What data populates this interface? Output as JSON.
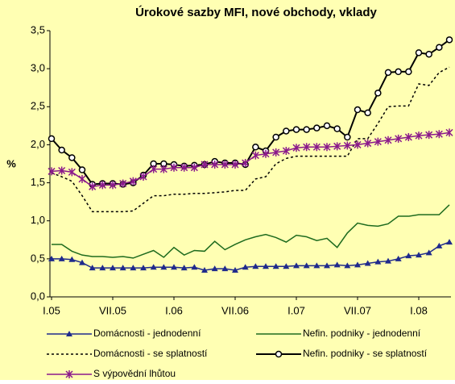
{
  "chart_data": {
    "type": "line",
    "title": "Úrokové sazby MFI, nové obchody, vklady",
    "y_label": "%",
    "categories": [
      "I.05",
      null,
      null,
      null,
      null,
      null,
      "VII.05",
      null,
      null,
      null,
      null,
      null,
      "I.06",
      null,
      null,
      null,
      null,
      null,
      "VII.06",
      null,
      null,
      null,
      null,
      null,
      "I.07",
      null,
      null,
      null,
      null,
      null,
      "VII.07",
      null,
      null,
      null,
      null,
      null,
      "I.08",
      null,
      null,
      null
    ],
    "ylim": [
      0,
      3.5
    ],
    "yticks": [
      {
        "value": 0,
        "label": "0,0"
      },
      {
        "value": 0.5,
        "label": "0,5"
      },
      {
        "value": 1,
        "label": "1,0"
      },
      {
        "value": 1.5,
        "label": "1,5"
      },
      {
        "value": 2,
        "label": "2,0"
      },
      {
        "value": 2.5,
        "label": "2,5"
      },
      {
        "value": 3,
        "label": "3,0"
      },
      {
        "value": 3.5,
        "label": "3,5"
      }
    ],
    "grid": false,
    "background": "#ffffb3",
    "series": [
      {
        "name": "Domácnosti - jednodenní",
        "color": "#1f2a8c",
        "marker": "triangle",
        "dash": "none",
        "values": [
          0.5,
          0.5,
          0.49,
          0.45,
          0.38,
          0.38,
          0.38,
          0.38,
          0.38,
          0.38,
          0.39,
          0.39,
          0.39,
          0.38,
          0.39,
          0.35,
          0.37,
          0.37,
          0.35,
          0.39,
          0.4,
          0.4,
          0.4,
          0.4,
          0.41,
          0.41,
          0.41,
          0.41,
          0.42,
          0.41,
          0.42,
          0.44,
          0.46,
          0.47,
          0.5,
          0.54,
          0.55,
          0.58,
          0.67,
          0.72
        ]
      },
      {
        "name": "Nefin. podniky - jednodenní",
        "color": "#1e6b1e",
        "marker": "none",
        "dash": "none",
        "values": [
          0.69,
          0.69,
          0.6,
          0.55,
          0.53,
          0.53,
          0.52,
          0.53,
          0.51,
          0.56,
          0.61,
          0.52,
          0.65,
          0.55,
          0.61,
          0.6,
          0.73,
          0.62,
          0.69,
          0.75,
          0.79,
          0.82,
          0.78,
          0.72,
          0.81,
          0.79,
          0.74,
          0.77,
          0.65,
          0.84,
          0.97,
          0.94,
          0.93,
          0.96,
          1.06,
          1.06,
          1.08,
          1.08,
          1.08,
          1.21
        ]
      },
      {
        "name": "Domácnosti - se splatností",
        "color": "#000000",
        "marker": "none",
        "dash": "3,3",
        "values": [
          1.63,
          1.58,
          1.52,
          1.33,
          1.12,
          1.12,
          1.12,
          1.12,
          1.13,
          1.23,
          1.33,
          1.33,
          1.35,
          1.35,
          1.36,
          1.36,
          1.37,
          1.38,
          1.4,
          1.4,
          1.55,
          1.58,
          1.75,
          1.82,
          1.85,
          1.85,
          1.85,
          1.85,
          1.85,
          1.85,
          2.08,
          2.08,
          2.28,
          2.5,
          2.51,
          2.51,
          2.8,
          2.78,
          2.95,
          3.02
        ]
      },
      {
        "name": "Nefin. podniky - se splatností",
        "color": "#000000",
        "marker": "circle",
        "dash": "none",
        "values": [
          2.08,
          1.93,
          1.83,
          1.67,
          1.48,
          1.49,
          1.49,
          1.48,
          1.5,
          1.6,
          1.75,
          1.75,
          1.74,
          1.72,
          1.73,
          1.74,
          1.78,
          1.76,
          1.76,
          1.74,
          1.97,
          1.92,
          2.1,
          2.18,
          2.2,
          2.2,
          2.22,
          2.25,
          2.21,
          2.1,
          2.46,
          2.42,
          2.68,
          2.95,
          2.96,
          2.96,
          3.21,
          3.19,
          3.28,
          3.38
        ]
      },
      {
        "name": "S výpovědní lhůtou",
        "color": "#8b1a8b",
        "marker": "star",
        "dash": "none",
        "values": [
          1.65,
          1.66,
          1.64,
          1.55,
          1.45,
          1.47,
          1.47,
          1.49,
          1.52,
          1.58,
          1.68,
          1.68,
          1.7,
          1.7,
          1.7,
          1.74,
          1.74,
          1.74,
          1.74,
          1.76,
          1.86,
          1.88,
          1.9,
          1.92,
          1.96,
          1.97,
          1.97,
          1.97,
          1.98,
          1.99,
          2.0,
          2.02,
          2.04,
          2.06,
          2.08,
          2.1,
          2.12,
          2.13,
          2.14,
          2.16
        ]
      }
    ]
  }
}
